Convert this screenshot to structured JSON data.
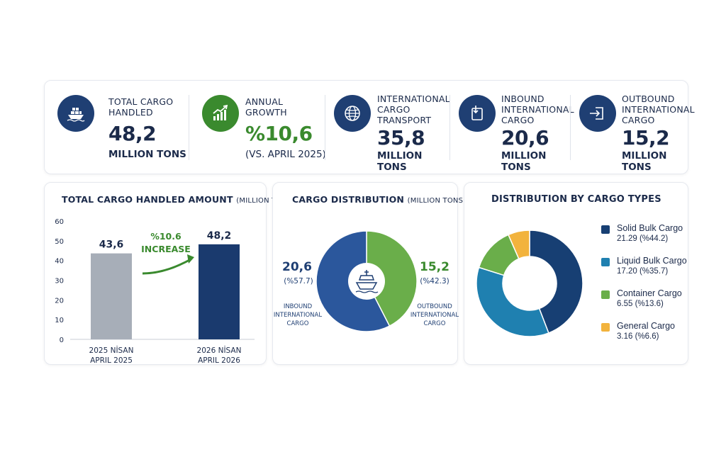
{
  "kpis": [
    {
      "label_line1": "TOTAL CARGO",
      "label_line2": "HANDLED",
      "label_line3": "",
      "value": "48,2",
      "unit": "MILLION TONS",
      "icon": "ship-icon",
      "color": "#1f3f73"
    },
    {
      "label_line1": "ANNUAL",
      "label_line2": "GROWTH",
      "label_line3": "",
      "value": "%10,6",
      "unit": "(VS. APRIL 2025)",
      "icon": "growth-chart-icon",
      "color": "#3a8a2e"
    },
    {
      "label_line1": "INTERNATIONAL",
      "label_line2": "CARGO",
      "label_line3": "TRANSPORT",
      "value": "35,8",
      "unit": "MILLION TONS",
      "icon": "globe-icon",
      "color": "#1f3f73"
    },
    {
      "label_line1": "INBOUND",
      "label_line2": "INTERNATIONAL",
      "label_line3": "CARGO",
      "value": "20,6",
      "unit": "MILLION TONS",
      "icon": "inbound-icon",
      "color": "#1f3f73"
    },
    {
      "label_line1": "OUTBOUND",
      "label_line2": "INTERNATIONAL",
      "label_line3": "CARGO",
      "value": "15,2",
      "unit": "MILLION TONS",
      "icon": "outbound-icon",
      "color": "#1f3f73"
    }
  ],
  "bar_panel": {
    "title_main": "TOTAL CARGO HANDLED AMOUNT",
    "title_unit": "(MILLION TONS)",
    "increase_pct": "%10.6",
    "increase_word": "INCREASE"
  },
  "dist_panel": {
    "title_main": "CARGO DISTRIBUTION",
    "title_unit": "(MILLION TONS)",
    "left_value": "20,6",
    "left_pct": "(%57.7)",
    "left_line1": "INBOUND",
    "left_line2": "INTERNATIONAL",
    "left_line3": "CARGO",
    "right_value": "15,2",
    "right_pct": "(%42.3)",
    "right_line1": "OUTBOUND",
    "right_line2": "INTERNATIONAL",
    "right_line3": "CARGO"
  },
  "types_panel": {
    "title": "DISTRIBUTION BY CARGO TYPES"
  },
  "chart_data": [
    {
      "type": "bar",
      "title": "TOTAL CARGO HANDLED AMOUNT (MILLION TONS)",
      "categories": [
        "2025 NİSAN\nAPRIL 2025",
        "2026 NİSAN\nAPRIL 2026"
      ],
      "category_line1": [
        "2025 NİSAN",
        "2026 NİSAN"
      ],
      "category_line2": [
        "APRIL 2025",
        "APRIL 2026"
      ],
      "values": [
        43.6,
        48.2
      ],
      "value_labels": [
        "43,6",
        "48,2"
      ],
      "colors": [
        "#a7aeb8",
        "#1a3a6e"
      ],
      "ylim": [
        0,
        60
      ],
      "yticks": [
        0,
        10,
        20,
        30,
        40,
        50,
        60
      ],
      "grid": false,
      "annotation": "%10.6 INCREASE"
    },
    {
      "type": "pie",
      "title": "CARGO DISTRIBUTION (MILLION TONS)",
      "labels": [
        "INBOUND INTERNATIONAL CARGO",
        "OUTBOUND INTERNATIONAL CARGO"
      ],
      "values": [
        20.6,
        15.2
      ],
      "percents": [
        57.7,
        42.3
      ],
      "colors": [
        "#2b579c",
        "#6aae4a"
      ]
    },
    {
      "type": "pie",
      "title": "DISTRIBUTION BY CARGO TYPES",
      "labels": [
        "Solid Bulk Cargo",
        "Liquid Bulk Cargo",
        "Container Cargo",
        "General Cargo"
      ],
      "values": [
        21.29,
        17.2,
        6.55,
        3.16
      ],
      "percents": [
        44.2,
        35.7,
        13.6,
        6.6
      ],
      "value_texts": [
        "21.29 (%44.2)",
        "17.20 (%35.7)",
        "6.55 (%13.6)",
        "3.16 (%6.6)"
      ],
      "colors": [
        "#173f73",
        "#1f80b0",
        "#6aae4a",
        "#f2b33d"
      ],
      "legend_position": "right"
    }
  ]
}
